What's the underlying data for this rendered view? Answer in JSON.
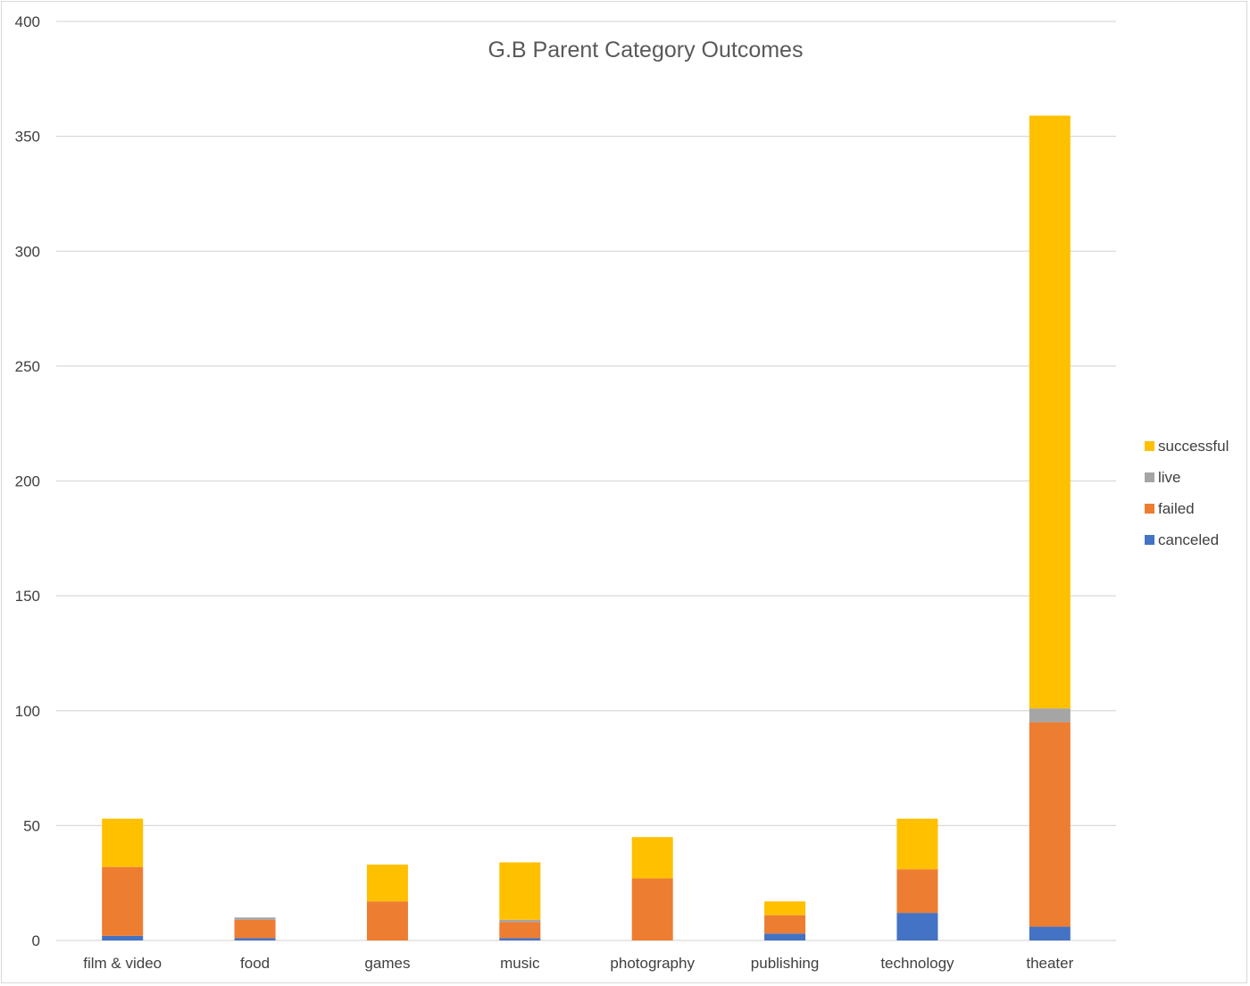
{
  "chart_data": {
    "type": "bar",
    "stacked": true,
    "title": "G.B Parent Category Outcomes",
    "xlabel": "",
    "ylabel": "",
    "ylim": [
      0,
      400
    ],
    "yticks": [
      0,
      50,
      100,
      150,
      200,
      250,
      300,
      350,
      400
    ],
    "grid": true,
    "legend_position": "right",
    "categories": [
      "film & video",
      "food",
      "games",
      "music",
      "photography",
      "publishing",
      "technology",
      "theater"
    ],
    "series": [
      {
        "name": "canceled",
        "color": "#4472c4",
        "values": [
          2,
          1,
          0,
          1,
          0,
          3,
          12,
          6
        ]
      },
      {
        "name": "failed",
        "color": "#ed7d31",
        "values": [
          30,
          8,
          17,
          7,
          27,
          8,
          19,
          89
        ]
      },
      {
        "name": "live",
        "color": "#a5a5a5",
        "values": [
          0,
          1,
          0,
          1,
          0,
          0,
          0,
          6
        ]
      },
      {
        "name": "successful",
        "color": "#ffc000",
        "values": [
          21,
          0,
          16,
          25,
          18,
          6,
          22,
          258
        ]
      }
    ]
  }
}
